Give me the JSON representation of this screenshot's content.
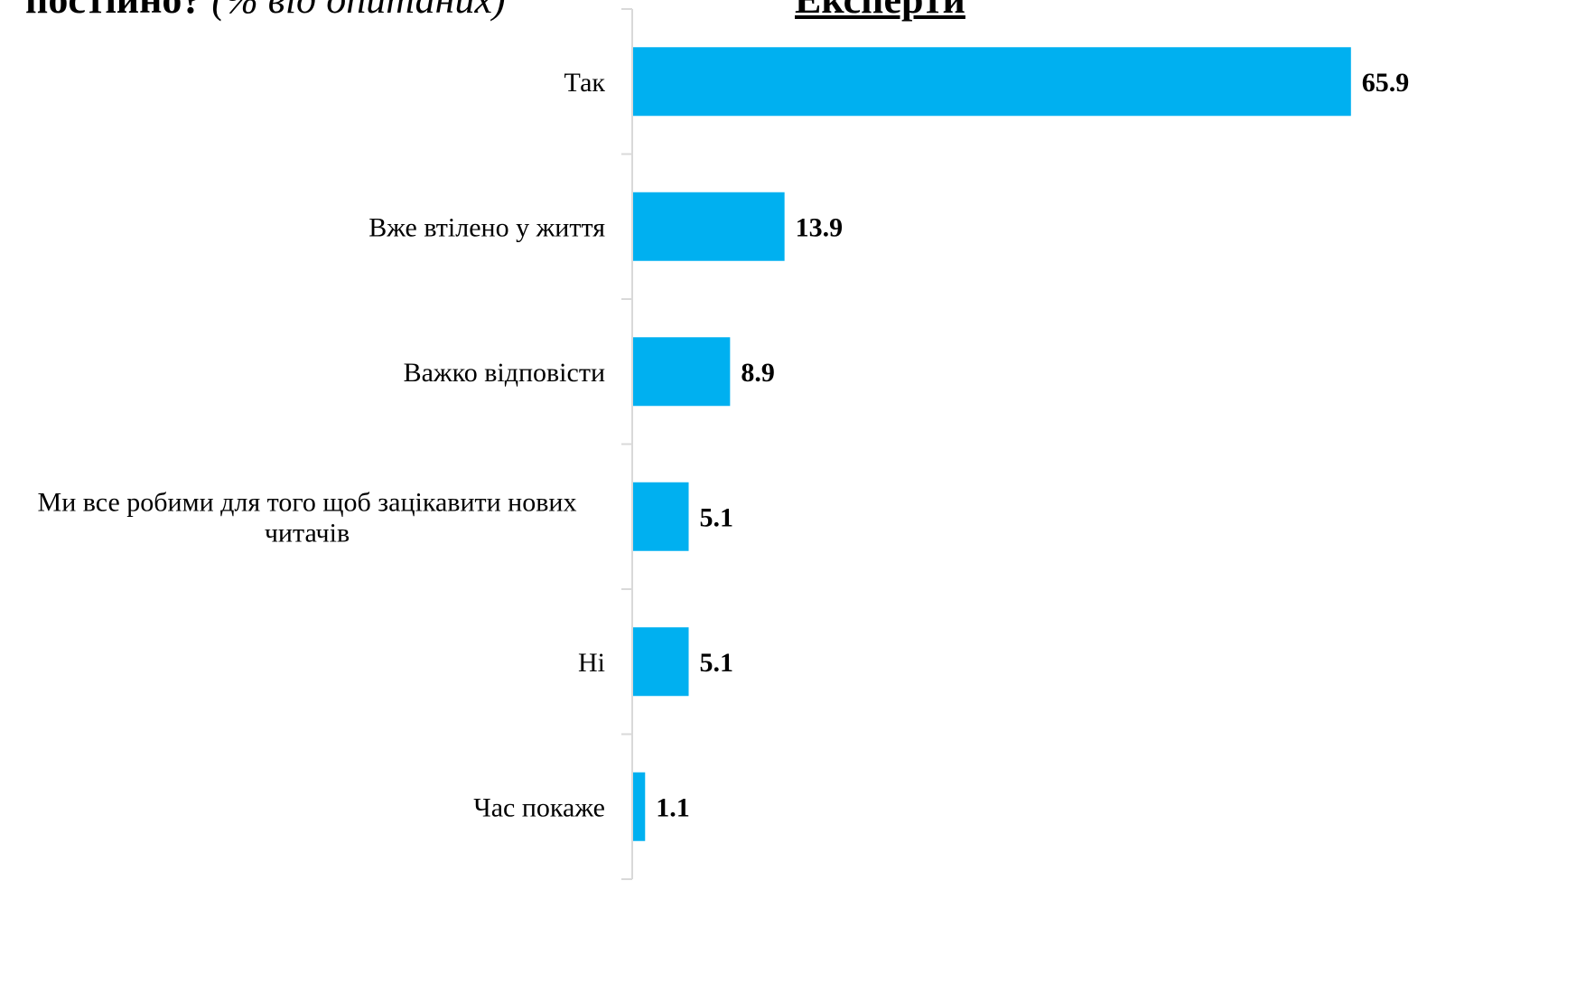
{
  "header": {
    "title_main": "постійно?",
    "title_sub": "(% від опитаних)",
    "group_label": "Експерти"
  },
  "colors": {
    "bar": "#00B0F0",
    "axis": "#D9D9D9",
    "text": "#000000"
  },
  "chart_data": {
    "type": "bar",
    "orientation": "horizontal",
    "categories": [
      "Так",
      "Вже втілено у життя",
      "Важко відповісти",
      "Ми все робими для того щоб зацікавити нових читачів",
      "Ні",
      "Час покаже"
    ],
    "category_lines": [
      [
        "Так"
      ],
      [
        "Вже втілено у життя"
      ],
      [
        "Важко відповісти"
      ],
      [
        "Ми все робими для того щоб зацікавити нових",
        "читачів"
      ],
      [
        "Ні"
      ],
      [
        "Час покаже"
      ]
    ],
    "values": [
      65.9,
      13.9,
      8.9,
      5.1,
      5.1,
      1.1
    ],
    "xlim": [
      0,
      66
    ],
    "grid": false,
    "legend": "none",
    "data_labels": true
  }
}
